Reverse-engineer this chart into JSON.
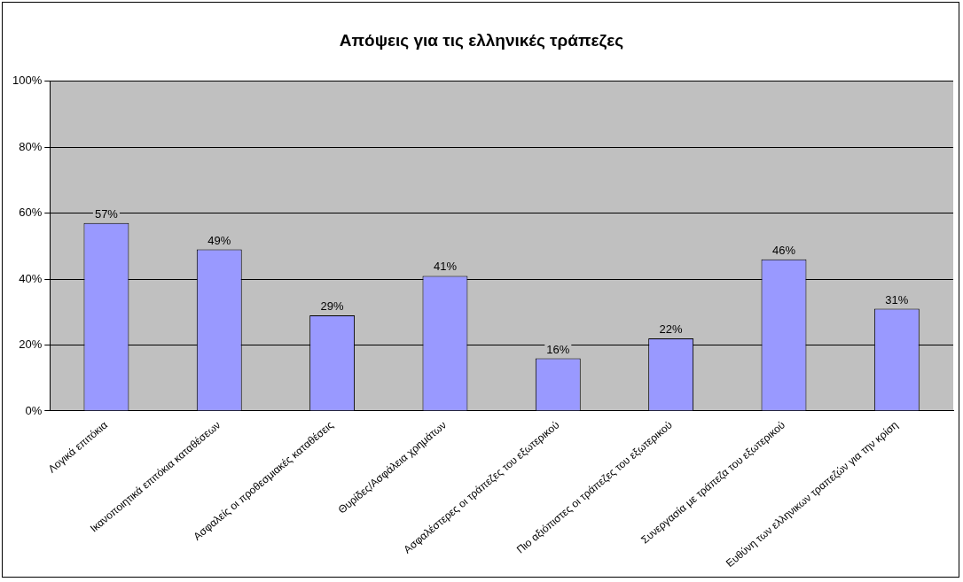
{
  "chart_data": {
    "type": "bar",
    "title": "Απόψεις για τις ελληνικές τράπεζες",
    "categories": [
      "Λογικά επιτόκια",
      "Ικανοποιητικά επιτόκια καταθέσεων",
      "Ασφαλείς οι προθεσμιακές καταθέσεις",
      "Θυρίδες/Ασφάλεια χρημάτων",
      "Ασφαλέστερες οι τράπεζες του εξωτερικού",
      "Πιο αξιόπιστες οι τράπεζες του εξωτερικού",
      "Συνεργασία με τράπεζα του εξωτερικού",
      "Ευθύνη των ελληνικων τραπεζών για την κρίση"
    ],
    "values": [
      57,
      49,
      29,
      41,
      16,
      22,
      46,
      31
    ],
    "value_labels": [
      "57%",
      "49%",
      "29%",
      "41%",
      "16%",
      "22%",
      "46%",
      "31%"
    ],
    "color": "#9999ff",
    "ylim": [
      0,
      100
    ],
    "yticks": [
      {
        "value": 0,
        "label": "0%"
      },
      {
        "value": 20,
        "label": "20%"
      },
      {
        "value": 40,
        "label": "40%"
      },
      {
        "value": 60,
        "label": "60%"
      },
      {
        "value": 80,
        "label": "80%"
      },
      {
        "value": 100,
        "label": "100%"
      }
    ],
    "grid": "y",
    "legend": false
  }
}
